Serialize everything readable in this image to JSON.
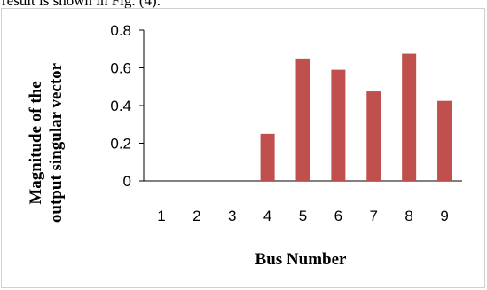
{
  "page": {
    "top_text": "result is shown in Fig. (4)."
  },
  "chart_data": {
    "type": "bar",
    "categories": [
      "1",
      "2",
      "3",
      "4",
      "5",
      "6",
      "7",
      "8",
      "9"
    ],
    "values": [
      0,
      0,
      0,
      0.25,
      0.65,
      0.59,
      0.475,
      0.675,
      0.425
    ],
    "ylim": [
      0,
      0.8
    ],
    "yticks": [
      "0",
      "0.2",
      "0.4",
      "0.6",
      "0.8"
    ],
    "xlabel": "Bus Number",
    "ylabel_line1": "Magnitude of the",
    "ylabel_line2": "output singular vector",
    "bar_color": "#c0504d",
    "grid": false,
    "legend": "none"
  }
}
